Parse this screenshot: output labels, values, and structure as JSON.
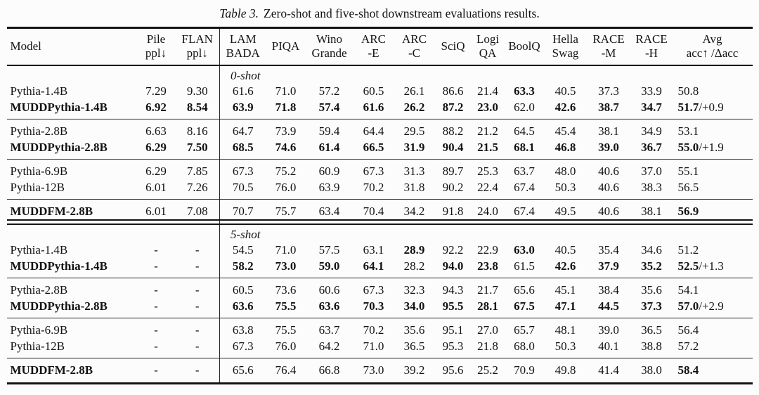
{
  "caption": {
    "label": "Table 3.",
    "text": "Zero-shot and five-shot downstream evaluations results."
  },
  "colors": {
    "background": "#fcfcfc",
    "text": "#131313",
    "rule": "#131313"
  },
  "table": {
    "columns": [
      {
        "lines": [
          "Model"
        ]
      },
      {
        "lines": [
          "Pile",
          "ppl↓"
        ]
      },
      {
        "lines": [
          "FLAN",
          "ppl↓"
        ]
      },
      {
        "lines": [
          "LAM",
          "BADA"
        ]
      },
      {
        "lines": [
          "PIQA"
        ]
      },
      {
        "lines": [
          "Wino",
          "Grande"
        ]
      },
      {
        "lines": [
          "ARC",
          "-E"
        ]
      },
      {
        "lines": [
          "ARC",
          "-C"
        ]
      },
      {
        "lines": [
          "SciQ"
        ]
      },
      {
        "lines": [
          "Logi",
          "QA"
        ]
      },
      {
        "lines": [
          "BoolQ"
        ]
      },
      {
        "lines": [
          "Hella",
          "Swag"
        ]
      },
      {
        "lines": [
          "RACE",
          "-M"
        ]
      },
      {
        "lines": [
          "RACE",
          "-H"
        ]
      },
      {
        "lines": [
          "Avg",
          "acc↑ /Δacc"
        ]
      }
    ],
    "sections": [
      {
        "label": "0-shot",
        "groups": [
          [
            {
              "model": "Pythia-1.4B",
              "model_bold": false,
              "cells": [
                "7.29",
                "9.30",
                "61.6",
                "71.0",
                "57.2",
                "60.5",
                "26.1",
                "86.6",
                "21.4",
                "63.3",
                "40.5",
                "37.3",
                "33.9"
              ],
              "bold": [
                0,
                0,
                0,
                0,
                0,
                0,
                0,
                0,
                0,
                1,
                0,
                0,
                0
              ],
              "avg": "50.8",
              "avg_bold": false,
              "delta": ""
            },
            {
              "model": "MUDDPythia-1.4B",
              "model_bold": true,
              "cells": [
                "6.92",
                "8.54",
                "63.9",
                "71.8",
                "57.4",
                "61.6",
                "26.2",
                "87.2",
                "23.0",
                "62.0",
                "42.6",
                "38.7",
                "34.7"
              ],
              "bold": [
                1,
                1,
                1,
                1,
                1,
                1,
                1,
                1,
                1,
                0,
                1,
                1,
                1
              ],
              "avg": "51.7",
              "avg_bold": true,
              "delta": "/+0.9"
            }
          ],
          [
            {
              "model": "Pythia-2.8B",
              "model_bold": false,
              "cells": [
                "6.63",
                "8.16",
                "64.7",
                "73.9",
                "59.4",
                "64.4",
                "29.5",
                "88.2",
                "21.2",
                "64.5",
                "45.4",
                "38.1",
                "34.9"
              ],
              "bold": [
                0,
                0,
                0,
                0,
                0,
                0,
                0,
                0,
                0,
                0,
                0,
                0,
                0
              ],
              "avg": "53.1",
              "avg_bold": false,
              "delta": ""
            },
            {
              "model": "MUDDPythia-2.8B",
              "model_bold": true,
              "cells": [
                "6.29",
                "7.50",
                "68.5",
                "74.6",
                "61.4",
                "66.5",
                "31.9",
                "90.4",
                "21.5",
                "68.1",
                "46.8",
                "39.0",
                "36.7"
              ],
              "bold": [
                1,
                1,
                1,
                1,
                1,
                1,
                1,
                1,
                1,
                1,
                1,
                1,
                1
              ],
              "avg": "55.0",
              "avg_bold": true,
              "delta": "/+1.9"
            }
          ],
          [
            {
              "model": "Pythia-6.9B",
              "model_bold": false,
              "cells": [
                "6.29",
                "7.85",
                "67.3",
                "75.2",
                "60.9",
                "67.3",
                "31.3",
                "89.7",
                "25.3",
                "63.7",
                "48.0",
                "40.6",
                "37.0"
              ],
              "bold": [
                0,
                0,
                0,
                0,
                0,
                0,
                0,
                0,
                0,
                0,
                0,
                0,
                0
              ],
              "avg": "55.1",
              "avg_bold": false,
              "delta": ""
            },
            {
              "model": "Pythia-12B",
              "model_bold": false,
              "cells": [
                "6.01",
                "7.26",
                "70.5",
                "76.0",
                "63.9",
                "70.2",
                "31.8",
                "90.2",
                "22.4",
                "67.4",
                "50.3",
                "40.6",
                "38.3"
              ],
              "bold": [
                0,
                0,
                0,
                0,
                0,
                0,
                0,
                0,
                0,
                0,
                0,
                0,
                0
              ],
              "avg": "56.5",
              "avg_bold": false,
              "delta": ""
            }
          ],
          [
            {
              "model": "MUDDFM-2.8B",
              "model_bold": true,
              "cells": [
                "6.01",
                "7.08",
                "70.7",
                "75.7",
                "63.4",
                "70.4",
                "34.2",
                "91.8",
                "24.0",
                "67.4",
                "49.5",
                "40.6",
                "38.1"
              ],
              "bold": [
                0,
                0,
                0,
                0,
                0,
                0,
                0,
                0,
                0,
                0,
                0,
                0,
                0
              ],
              "avg": "56.9",
              "avg_bold": true,
              "delta": ""
            }
          ]
        ]
      },
      {
        "label": "5-shot",
        "groups": [
          [
            {
              "model": "Pythia-1.4B",
              "model_bold": false,
              "cells": [
                "-",
                "-",
                "54.5",
                "71.0",
                "57.5",
                "63.1",
                "28.9",
                "92.2",
                "22.9",
                "63.0",
                "40.5",
                "35.4",
                "34.6"
              ],
              "bold": [
                0,
                0,
                0,
                0,
                0,
                0,
                1,
                0,
                0,
                1,
                0,
                0,
                0
              ],
              "avg": "51.2",
              "avg_bold": false,
              "delta": ""
            },
            {
              "model": "MUDDPythia-1.4B",
              "model_bold": true,
              "cells": [
                "-",
                "-",
                "58.2",
                "73.0",
                "59.0",
                "64.1",
                "28.2",
                "94.0",
                "23.8",
                "61.5",
                "42.6",
                "37.9",
                "35.2"
              ],
              "bold": [
                0,
                0,
                1,
                1,
                1,
                1,
                0,
                1,
                1,
                0,
                1,
                1,
                1
              ],
              "avg": "52.5",
              "avg_bold": true,
              "delta": "/+1.3"
            }
          ],
          [
            {
              "model": "Pythia-2.8B",
              "model_bold": false,
              "cells": [
                "-",
                "-",
                "60.5",
                "73.6",
                "60.6",
                "67.3",
                "32.3",
                "94.3",
                "21.7",
                "65.6",
                "45.1",
                "38.4",
                "35.6"
              ],
              "bold": [
                0,
                0,
                0,
                0,
                0,
                0,
                0,
                0,
                0,
                0,
                0,
                0,
                0
              ],
              "avg": "54.1",
              "avg_bold": false,
              "delta": ""
            },
            {
              "model": "MUDDPythia-2.8B",
              "model_bold": true,
              "cells": [
                "-",
                "-",
                "63.6",
                "75.5",
                "63.6",
                "70.3",
                "34.0",
                "95.5",
                "28.1",
                "67.5",
                "47.1",
                "44.5",
                "37.3"
              ],
              "bold": [
                0,
                0,
                1,
                1,
                1,
                1,
                1,
                1,
                1,
                1,
                1,
                1,
                1
              ],
              "avg": "57.0",
              "avg_bold": true,
              "delta": "/+2.9"
            }
          ],
          [
            {
              "model": "Pythia-6.9B",
              "model_bold": false,
              "cells": [
                "-",
                "-",
                "63.8",
                "75.5",
                "63.7",
                "70.2",
                "35.6",
                "95.1",
                "27.0",
                "65.7",
                "48.1",
                "39.0",
                "36.5"
              ],
              "bold": [
                0,
                0,
                0,
                0,
                0,
                0,
                0,
                0,
                0,
                0,
                0,
                0,
                0
              ],
              "avg": "56.4",
              "avg_bold": false,
              "delta": ""
            },
            {
              "model": "Pythia-12B",
              "model_bold": false,
              "cells": [
                "-",
                "-",
                "67.3",
                "76.0",
                "64.2",
                "71.0",
                "36.5",
                "95.3",
                "21.8",
                "68.0",
                "50.3",
                "40.1",
                "38.8"
              ],
              "bold": [
                0,
                0,
                0,
                0,
                0,
                0,
                0,
                0,
                0,
                0,
                0,
                0,
                0
              ],
              "avg": "57.2",
              "avg_bold": false,
              "delta": ""
            }
          ],
          [
            {
              "model": "MUDDFM-2.8B",
              "model_bold": true,
              "cells": [
                "-",
                "-",
                "65.6",
                "76.4",
                "66.8",
                "73.0",
                "39.2",
                "95.6",
                "25.2",
                "70.9",
                "49.8",
                "41.4",
                "38.0"
              ],
              "bold": [
                0,
                0,
                0,
                0,
                0,
                0,
                0,
                0,
                0,
                0,
                0,
                0,
                0
              ],
              "avg": "58.4",
              "avg_bold": true,
              "delta": ""
            }
          ]
        ]
      }
    ]
  }
}
